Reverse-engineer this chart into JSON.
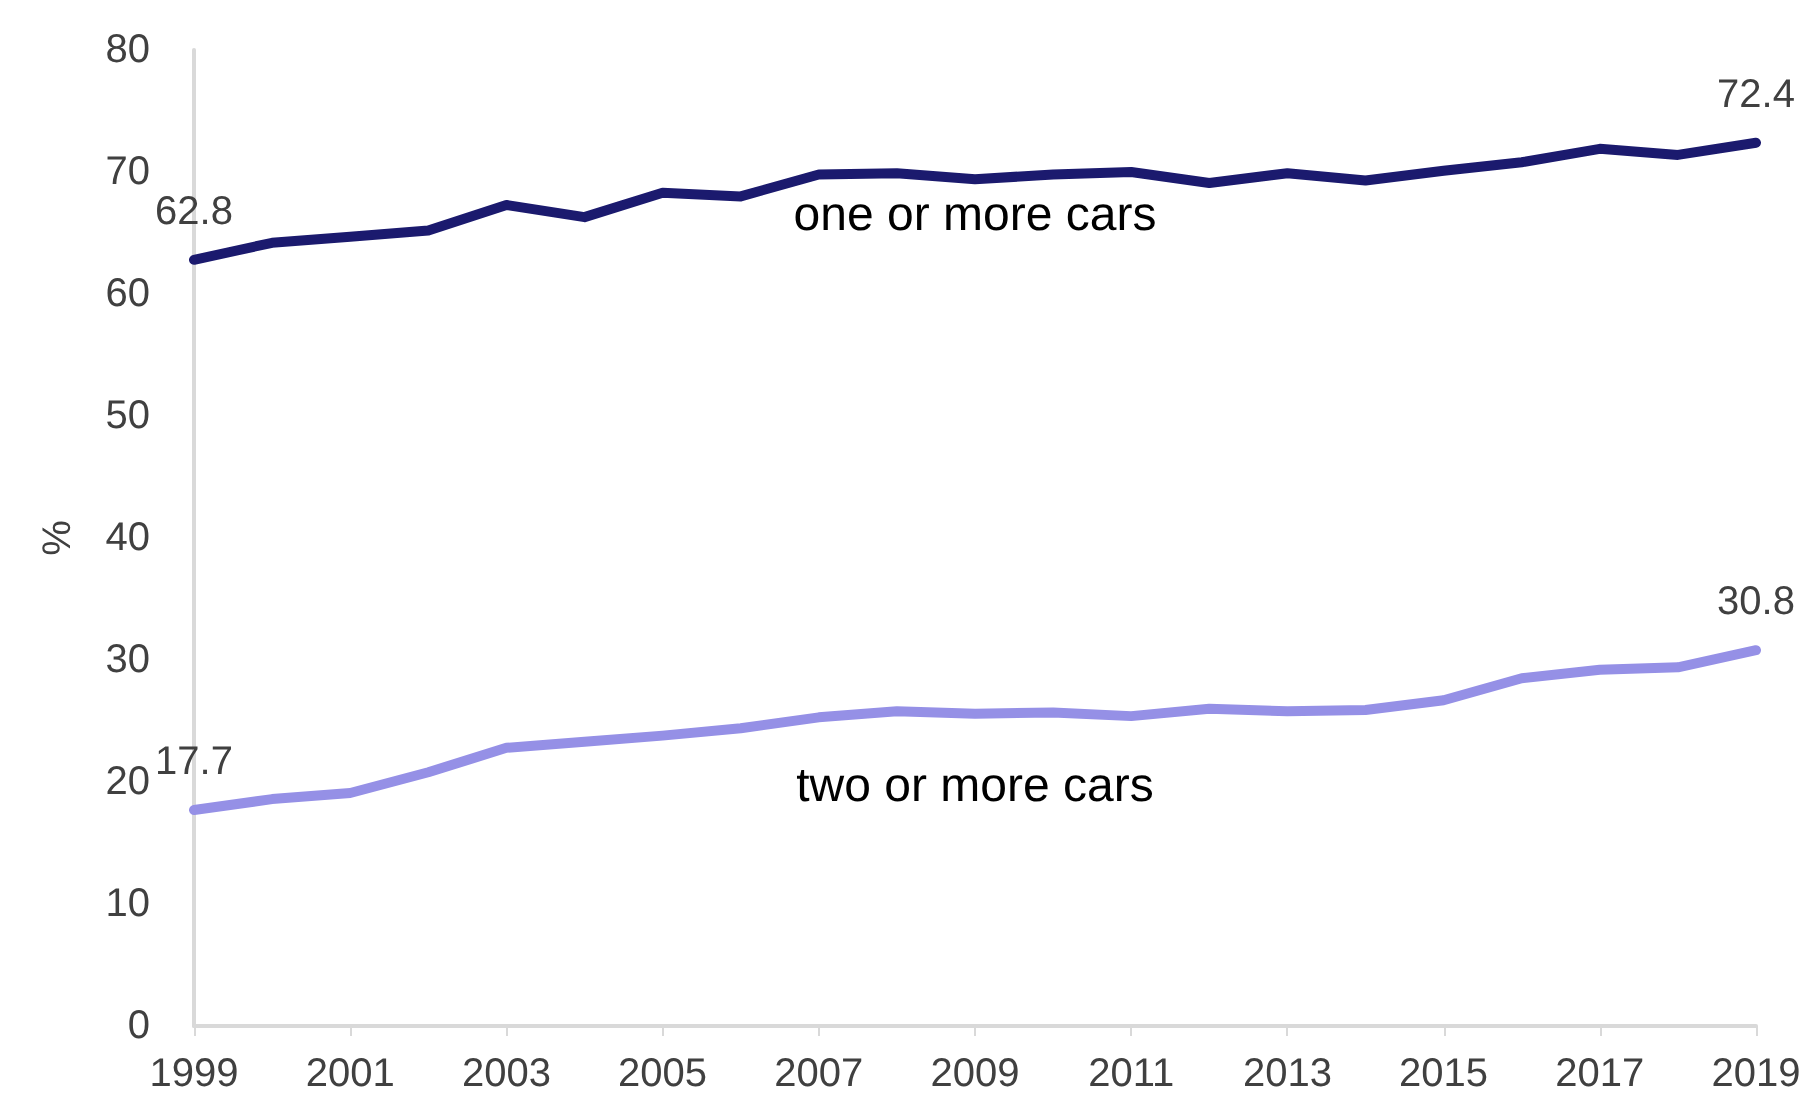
{
  "chart_data": {
    "type": "line",
    "ylabel": "%",
    "categories": [
      "1999",
      null,
      "2001",
      null,
      "2003",
      null,
      "2005",
      null,
      "2007",
      null,
      "2009",
      null,
      "2011",
      null,
      "2013",
      null,
      "2015",
      null,
      "2017",
      null,
      "2019"
    ],
    "series": [
      {
        "name": "one or more cars",
        "color": "#1b1a6e",
        "values": [
          62.8,
          64.2,
          64.7,
          65.2,
          67.3,
          66.3,
          68.3,
          68.0,
          69.8,
          69.9,
          69.4,
          69.8,
          70.0,
          69.1,
          69.9,
          69.3,
          70.1,
          70.8,
          71.9,
          71.4,
          72.4
        ],
        "value_labels": [
          "62.8",
          null,
          null,
          null,
          null,
          null,
          null,
          null,
          null,
          null,
          null,
          null,
          null,
          null,
          null,
          null,
          null,
          null,
          null,
          null,
          "72.4"
        ]
      },
      {
        "name": "two or more cars",
        "color": "#9590e6",
        "values": [
          17.7,
          18.6,
          19.1,
          20.8,
          22.8,
          23.3,
          23.8,
          24.4,
          25.3,
          25.8,
          25.6,
          25.7,
          25.4,
          26.0,
          25.8,
          25.9,
          26.7,
          28.5,
          29.2,
          29.4,
          30.8
        ],
        "value_labels": [
          "17.7",
          null,
          null,
          null,
          null,
          null,
          null,
          null,
          null,
          null,
          null,
          null,
          null,
          null,
          null,
          null,
          null,
          null,
          null,
          null,
          "30.8"
        ]
      }
    ],
    "ylim": [
      0,
      80
    ],
    "yticks": [
      0,
      10,
      20,
      30,
      40,
      50,
      60,
      70,
      80
    ],
    "grid": false,
    "legend": false,
    "marker": "none",
    "line_style": "solid"
  }
}
